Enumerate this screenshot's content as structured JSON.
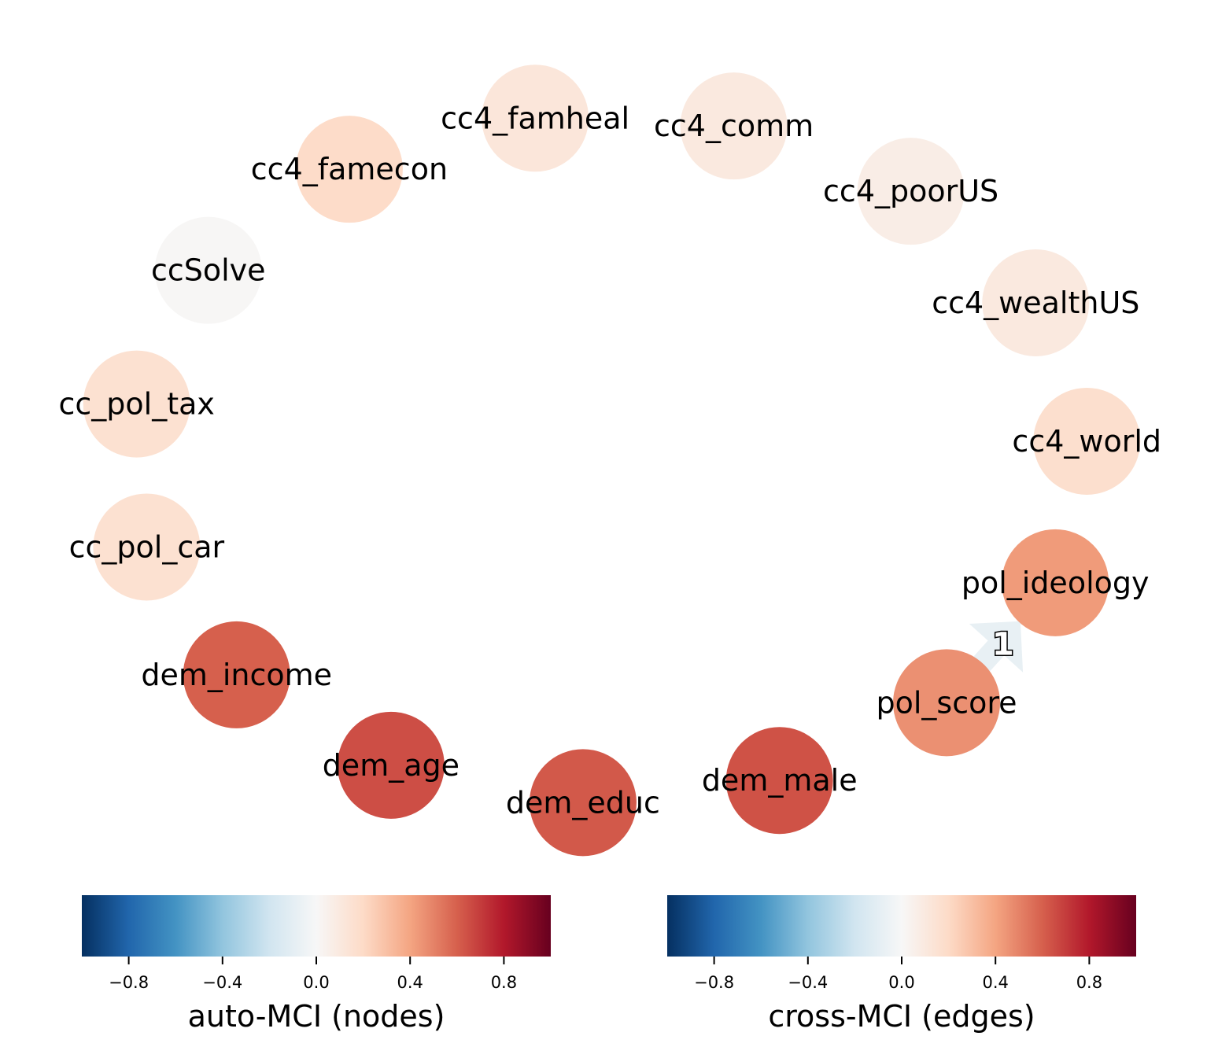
{
  "graph": {
    "nodes": [
      {
        "id": "cc4_famheal",
        "label": "cc4_famheal",
        "auto_mci": 0.12
      },
      {
        "id": "cc4_comm",
        "label": "cc4_comm",
        "auto_mci": 0.1
      },
      {
        "id": "cc4_poorUS",
        "label": "cc4_poorUS",
        "auto_mci": 0.07
      },
      {
        "id": "cc4_wealthUS",
        "label": "cc4_wealthUS",
        "auto_mci": 0.1
      },
      {
        "id": "cc4_world",
        "label": "cc4_world",
        "auto_mci": 0.17
      },
      {
        "id": "pol_ideology",
        "label": "pol_ideology",
        "auto_mci": 0.43
      },
      {
        "id": "pol_score",
        "label": "pol_score",
        "auto_mci": 0.46
      },
      {
        "id": "dem_male",
        "label": "dem_male",
        "auto_mci": 0.64
      },
      {
        "id": "dem_educ",
        "label": "dem_educ",
        "auto_mci": 0.62
      },
      {
        "id": "dem_age",
        "label": "dem_age",
        "auto_mci": 0.65
      },
      {
        "id": "dem_income",
        "label": "dem_income",
        "auto_mci": 0.6
      },
      {
        "id": "cc_pol_car",
        "label": "cc_pol_car",
        "auto_mci": 0.16
      },
      {
        "id": "cc_pol_tax",
        "label": "cc_pol_tax",
        "auto_mci": 0.16
      },
      {
        "id": "ccSolve",
        "label": "ccSolve",
        "auto_mci": 0.01
      },
      {
        "id": "cc4_famecon",
        "label": "cc4_famecon",
        "auto_mci": 0.19
      }
    ],
    "edges": [
      {
        "source": "pol_score",
        "target": "pol_ideology",
        "label": "1",
        "cross_mci": -0.08
      }
    ]
  },
  "colorbars": [
    {
      "name": "auto-mci",
      "title": "auto-MCI (nodes)",
      "range": [
        -1,
        1
      ],
      "ticks": [
        -0.8,
        -0.4,
        0.0,
        0.4,
        0.8
      ],
      "tick_labels": [
        "−0.8",
        "−0.4",
        "0.0",
        "0.4",
        "0.8"
      ],
      "colormap": "RdBu_r"
    },
    {
      "name": "cross-mci",
      "title": "cross-MCI (edges)",
      "range": [
        -1,
        1
      ],
      "ticks": [
        -0.8,
        -0.4,
        0.0,
        0.4,
        0.8
      ],
      "tick_labels": [
        "−0.8",
        "−0.4",
        "0.0",
        "0.4",
        "0.8"
      ],
      "colormap": "RdBu_r"
    }
  ],
  "colormap_stops": [
    "#053061",
    "#2166ac",
    "#4393c3",
    "#92c5de",
    "#d1e5f0",
    "#f7f7f7",
    "#fddbc7",
    "#f4a582",
    "#d6604d",
    "#b2182b",
    "#67001f"
  ]
}
